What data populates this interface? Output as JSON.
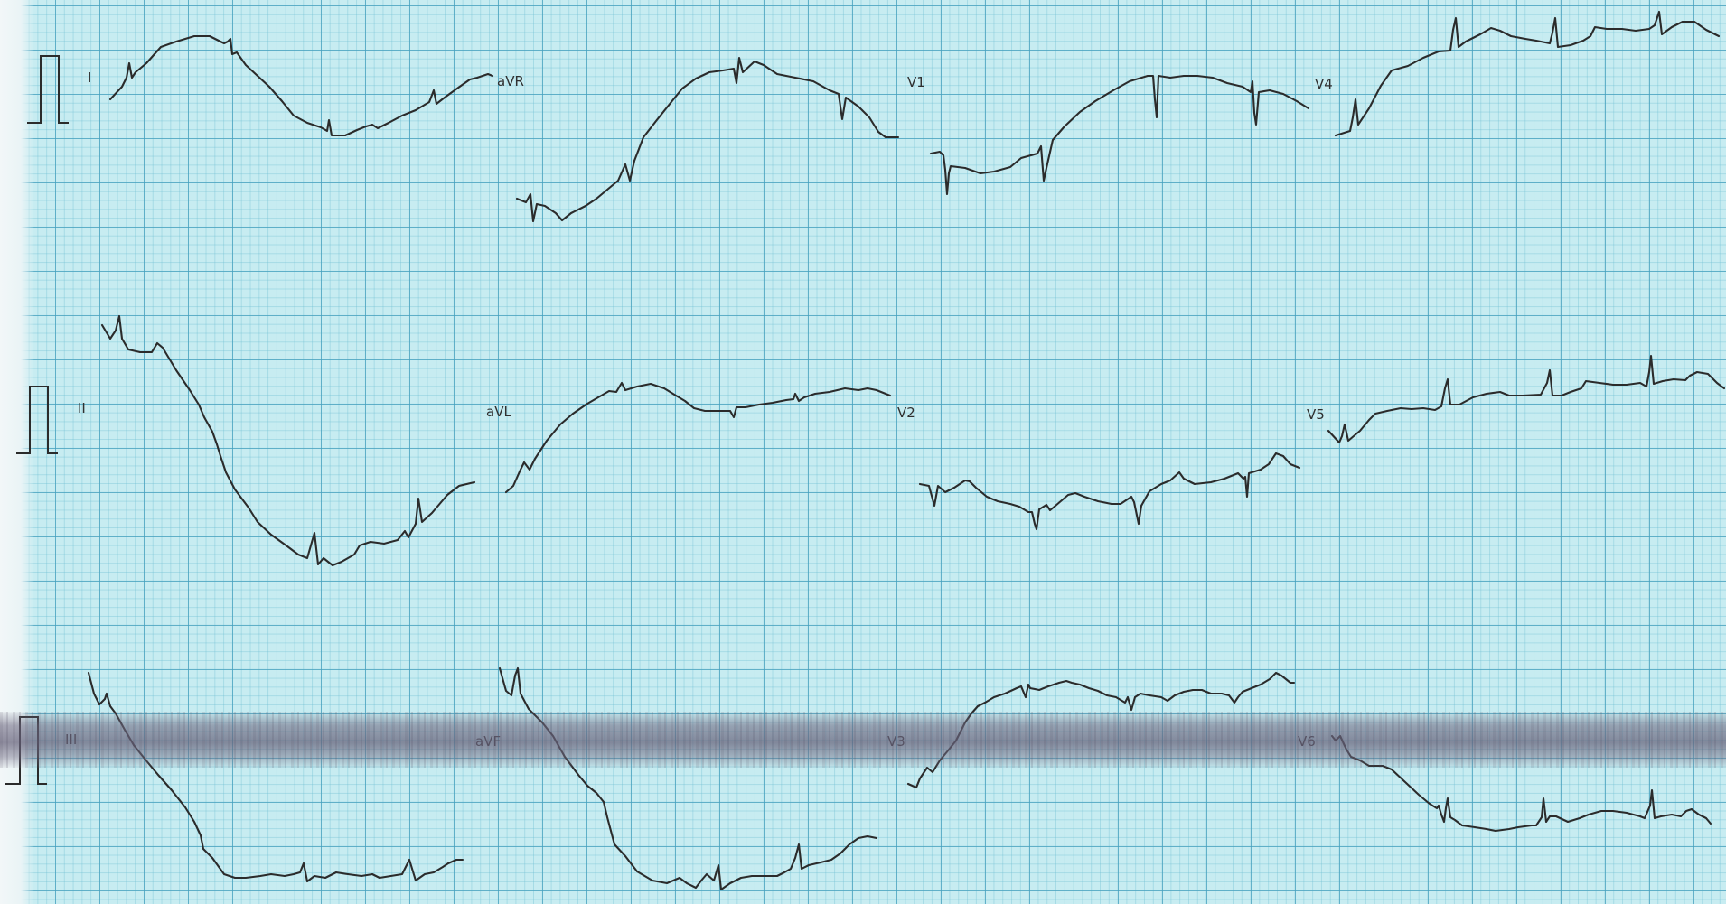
{
  "leads": [
    {
      "id": "I",
      "label": "I"
    },
    {
      "id": "aVR",
      "label": "aVR"
    },
    {
      "id": "V1",
      "label": "V1"
    },
    {
      "id": "V4",
      "label": "V4"
    },
    {
      "id": "II",
      "label": "II"
    },
    {
      "id": "aVL",
      "label": "aVL"
    },
    {
      "id": "V2",
      "label": "V2"
    },
    {
      "id": "V5",
      "label": "V5"
    },
    {
      "id": "III",
      "label": "III"
    },
    {
      "id": "aVF",
      "label": "aVF"
    },
    {
      "id": "V3",
      "label": "V3"
    },
    {
      "id": "V6",
      "label": "V6"
    }
  ],
  "colors": {
    "paper": "#c7ecf1",
    "grid_major": "#46a0be",
    "grid_minor": "#6ebed2",
    "trace": "#2b2b2b"
  }
}
